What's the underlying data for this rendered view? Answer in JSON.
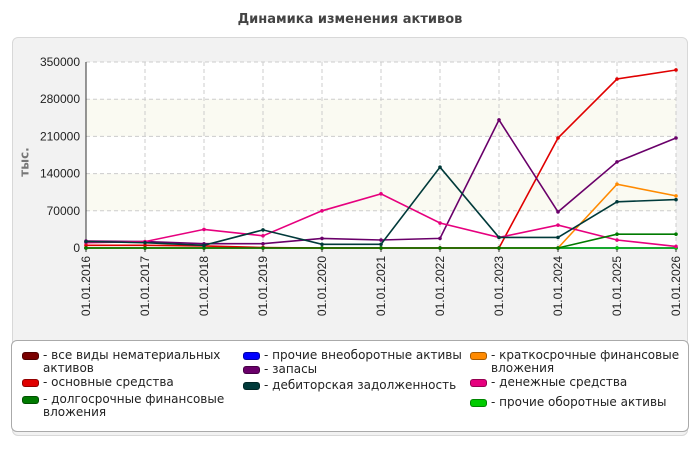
{
  "chart_data": {
    "type": "line",
    "title": "Динамика изменения активов",
    "ylabel": "тыс.",
    "ylim": [
      0,
      350000
    ],
    "yticks": [
      "0",
      "70000",
      "140000",
      "210000",
      "280000",
      "350000"
    ],
    "ytick_values": [
      0,
      70000,
      140000,
      210000,
      280000,
      350000
    ],
    "categories": [
      "01.01.2016",
      "01.01.2017",
      "01.01.2018",
      "01.01.2019",
      "01.01.2020",
      "01.01.2021",
      "01.01.2022",
      "01.01.2023",
      "01.01.2024",
      "01.01.2025",
      "01.01.2026"
    ],
    "grid": true,
    "legend_position": "bottom",
    "series": [
      {
        "name": "- все виды нематериальных активов",
        "color": "#7a0000",
        "values": [
          0,
          0,
          0,
          0,
          0,
          0,
          0,
          0,
          0,
          0,
          0
        ]
      },
      {
        "name": "- прочие внеоборотные активы",
        "color": "#0000ff",
        "values": [
          0,
          0,
          0,
          0,
          0,
          0,
          0,
          0,
          0,
          0,
          0
        ]
      },
      {
        "name": "- краткосрочные финансовые вложения",
        "color": "#ff8a00",
        "values": [
          0,
          0,
          0,
          0,
          0,
          0,
          0,
          0,
          0,
          120000,
          98000
        ]
      },
      {
        "name": "- основные средства",
        "color": "#e00000",
        "values": [
          5000,
          5000,
          4000,
          1000,
          0,
          0,
          0,
          0,
          207000,
          318000,
          335000
        ]
      },
      {
        "name": "- запасы",
        "color": "#6a006a",
        "values": [
          13000,
          12000,
          8000,
          8000,
          18000,
          15000,
          18000,
          241000,
          68000,
          162000,
          207000
        ]
      },
      {
        "name": "- денежные средства",
        "color": "#e6007e",
        "values": [
          10000,
          12000,
          35000,
          23000,
          70000,
          102000,
          47000,
          20000,
          43000,
          15000,
          3000
        ]
      },
      {
        "name": "- долгосрочные финансовые вложения",
        "color": "#007a00",
        "values": [
          0,
          0,
          0,
          0,
          0,
          0,
          0,
          0,
          0,
          26000,
          26000
        ]
      },
      {
        "name": "- дебиторская задолженность",
        "color": "#003a3a",
        "values": [
          12000,
          10000,
          5000,
          34000,
          7000,
          7000,
          152000,
          20000,
          20000,
          87000,
          91000
        ]
      },
      {
        "name": "- прочие оборотные активы",
        "color": "#00cc00",
        "values": [
          0,
          0,
          0,
          0,
          0,
          0,
          0,
          0,
          0,
          0,
          0
        ]
      }
    ]
  }
}
